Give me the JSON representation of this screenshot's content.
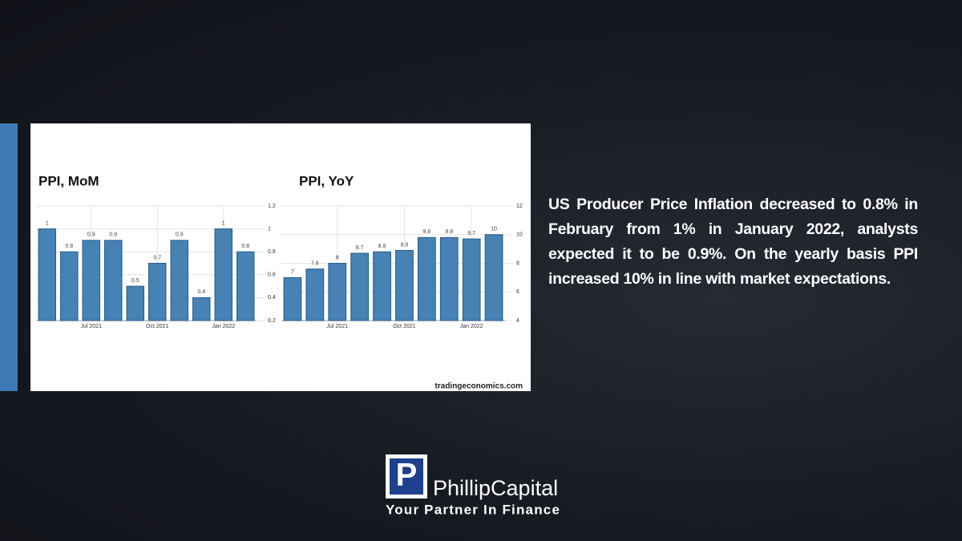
{
  "chart_data": [
    {
      "type": "bar",
      "title": "PPI, MoM",
      "categories": [
        null,
        null,
        "Jul 2021",
        null,
        null,
        "Oct 2021",
        null,
        null,
        "Jan 2022",
        null
      ],
      "values": [
        1,
        0.8,
        0.9,
        0.9,
        0.5,
        0.7,
        0.9,
        0.4,
        1,
        0.8
      ],
      "color": "#4682b4",
      "ylim": [
        0.2,
        1.2
      ],
      "yticks": [
        0.2,
        0.4,
        0.6,
        0.8,
        1,
        1.2
      ],
      "grid": true
    },
    {
      "type": "bar",
      "title": "PPI, YoY",
      "categories": [
        null,
        null,
        "Jul 2021",
        null,
        null,
        "Oct 2021",
        null,
        null,
        "Jan 2022",
        null
      ],
      "values": [
        7,
        7.6,
        8,
        8.7,
        8.8,
        8.9,
        9.8,
        9.8,
        9.7,
        10
      ],
      "color": "#4682b4",
      "ylim": [
        4,
        12
      ],
      "yticks": [
        4,
        6,
        8,
        10,
        12
      ],
      "grid": true
    }
  ],
  "source": "tradingeconomics.com",
  "text": "US Producer Price Inflation decreased to 0.8% in February from 1% in January 2022, analysts expected it to be 0.9%. On the yearly basis PPI increased 10% in line with market expectations.",
  "logo": {
    "icon": "P",
    "name": "PhillipCapital",
    "tagline": "Your Partner In Finance"
  }
}
